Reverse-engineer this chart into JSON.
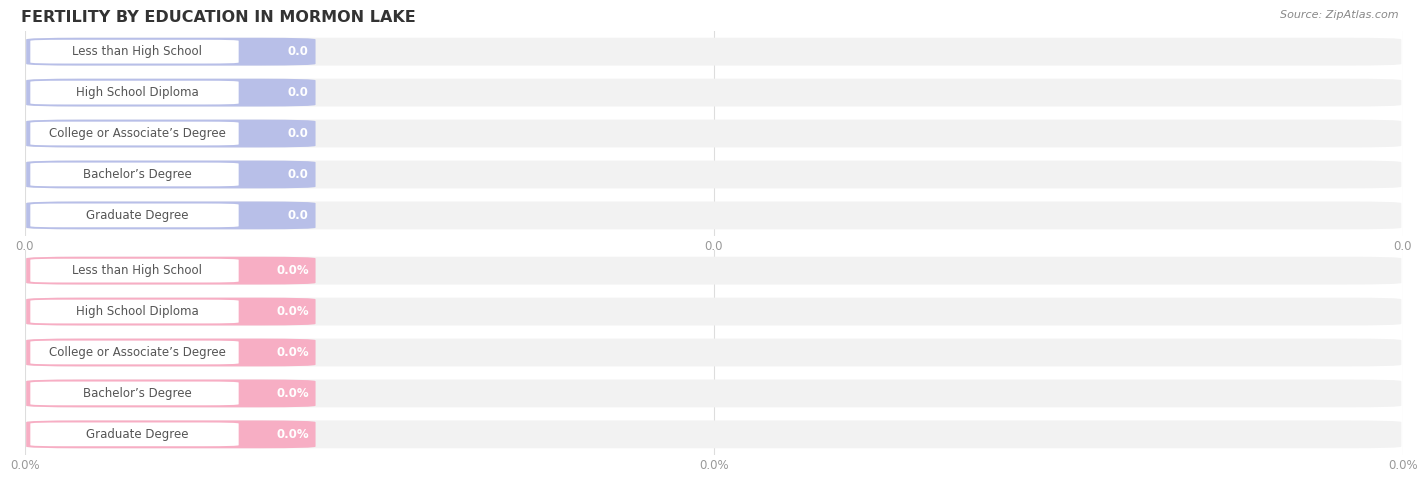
{
  "title": "FERTILITY BY EDUCATION IN MORMON LAKE",
  "source": "Source: ZipAtlas.com",
  "categories": [
    "Less than High School",
    "High School Diploma",
    "College or Associate’s Degree",
    "Bachelor’s Degree",
    "Graduate Degree"
  ],
  "values_top": [
    0.0,
    0.0,
    0.0,
    0.0,
    0.0
  ],
  "values_bottom": [
    0.0,
    0.0,
    0.0,
    0.0,
    0.0
  ],
  "bar_color_top": "#b8bfe8",
  "bar_color_bottom": "#f7aec4",
  "bg_bar_color": "#f2f2f2",
  "bar_label_color": "#555555",
  "value_color_top": "#9099cc",
  "value_color_bottom": "#e888a8",
  "title_color": "#333333",
  "source_color": "#888888",
  "tick_label_color": "#999999",
  "grid_color": "#dddddd",
  "figsize": [
    14.06,
    4.76
  ],
  "dpi": 100,
  "top_tick_labels": [
    "0.0",
    "0.0",
    "0.0"
  ],
  "bottom_tick_labels": [
    "0.0%",
    "0.0%",
    "0.0%"
  ]
}
